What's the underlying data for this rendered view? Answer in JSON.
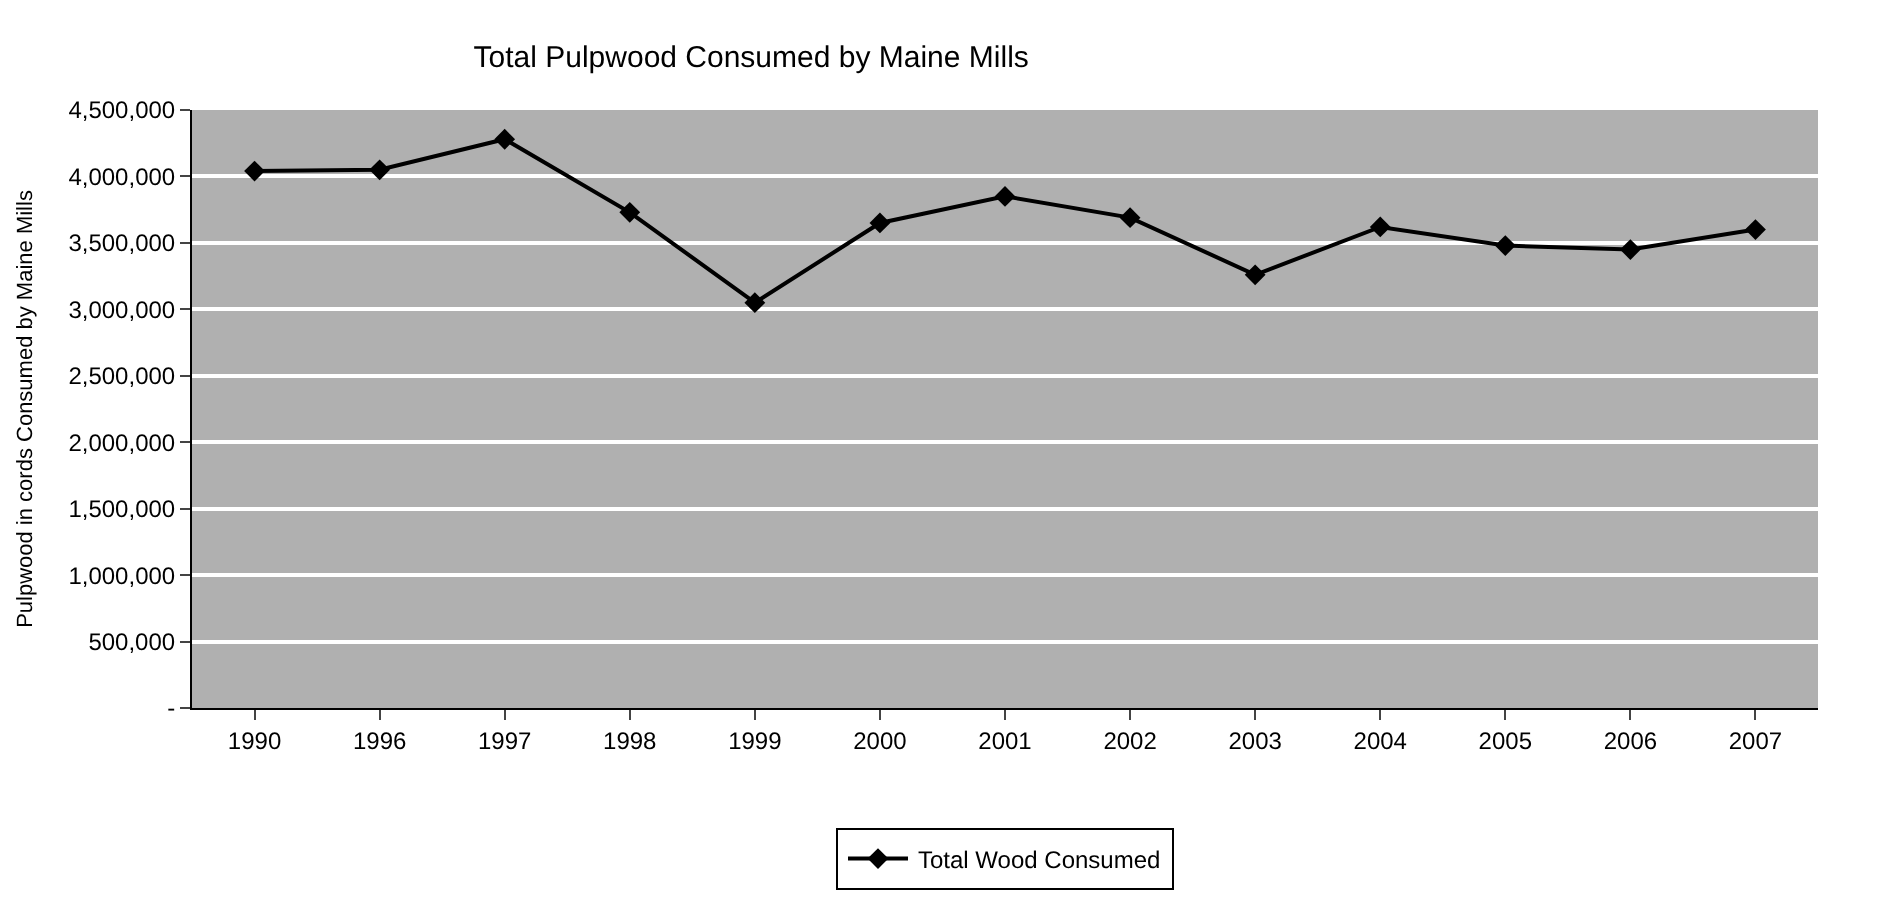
{
  "chart_data": {
    "type": "line",
    "title": "Total Pulpwood Consumed by Maine Mills",
    "ylabel": "Pulpwood in cords Consumed by Maine Mills",
    "categories": [
      "1990",
      "1996",
      "1997",
      "1998",
      "1999",
      "2000",
      "2001",
      "2002",
      "2003",
      "2004",
      "2005",
      "2006",
      "2007"
    ],
    "series": [
      {
        "name": "Total Wood Consumed",
        "color": "#000000",
        "values": [
          4040000,
          4050000,
          4280000,
          3730000,
          3050000,
          3650000,
          3850000,
          3690000,
          3260000,
          3620000,
          3480000,
          3450000,
          3600000
        ]
      }
    ],
    "ylim": [
      0,
      4500000
    ],
    "yticks": [
      {
        "value": 0,
        "label": "-"
      },
      {
        "value": 500000,
        "label": "500,000"
      },
      {
        "value": 1000000,
        "label": "1,000,000"
      },
      {
        "value": 1500000,
        "label": "1,500,000"
      },
      {
        "value": 2000000,
        "label": "2,000,000"
      },
      {
        "value": 2500000,
        "label": "2,500,000"
      },
      {
        "value": 3000000,
        "label": "3,000,000"
      },
      {
        "value": 3500000,
        "label": "3,500,000"
      },
      {
        "value": 4000000,
        "label": "4,000,000"
      },
      {
        "value": 4500000,
        "label": "4,500,000"
      }
    ],
    "grid": "y",
    "legend": "bottom",
    "marker": "diamond",
    "line_style": "solid"
  }
}
